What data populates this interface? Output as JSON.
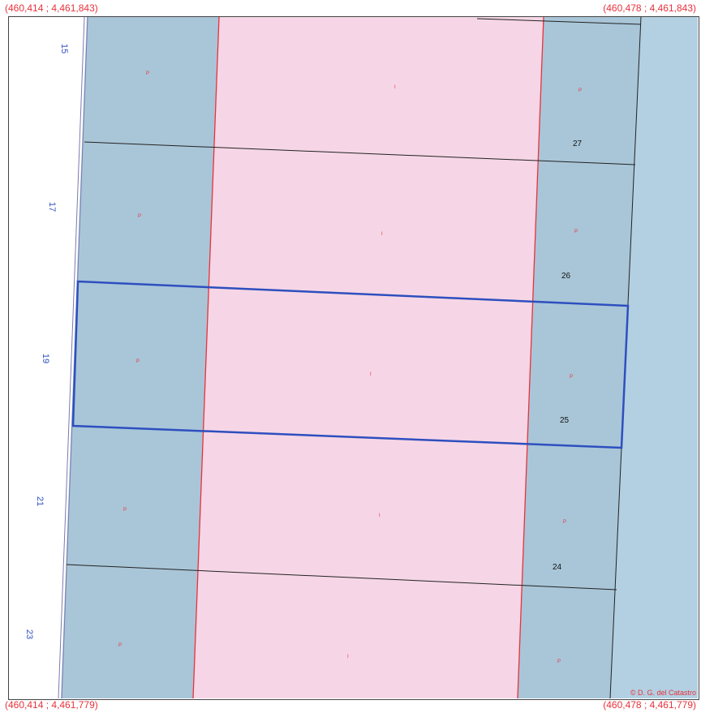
{
  "corners": {
    "top_left": "(460,414 ; 4,461,843)",
    "top_right": "(460,478 ; 4,461,843)",
    "bottom_left": "(460,414 ; 4,461,779)",
    "bottom_right": "(460,478 ; 4,461,779)"
  },
  "credit": "© D. G. del Catastro",
  "colors": {
    "parcel_blue": "#a9c6d8",
    "right_blue": "#b2d0e2",
    "road_pink": "#f6d6e6",
    "highlight_blue": "#2e4fbf",
    "red": "#e8323c",
    "street_number_blue": "#2f4fc0"
  },
  "street_numbers_left": [
    "15",
    "17",
    "19",
    "21",
    "23"
  ],
  "parcel_numbers_right": [
    "27",
    "26",
    "25",
    "24"
  ],
  "use_code_parcel": "P",
  "use_code_road": "I"
}
